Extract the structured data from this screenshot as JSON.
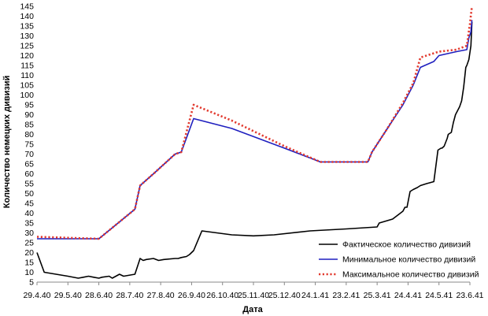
{
  "chart_data": {
    "type": "line",
    "title": "",
    "xlabel": "Дата",
    "ylabel": "Количество немецких дивизий",
    "ylim": [
      5,
      145
    ],
    "y_ticks": [
      5,
      10,
      15,
      20,
      25,
      30,
      35,
      40,
      45,
      50,
      55,
      60,
      65,
      70,
      75,
      80,
      85,
      90,
      95,
      100,
      105,
      110,
      115,
      120,
      125,
      130,
      135,
      140,
      145
    ],
    "x_tick_labels": [
      "29.4.40",
      "29.5.40",
      "28.6.40",
      "28.7.40",
      "27.8.40",
      "26.9.40",
      "26.10.40",
      "25.11.40",
      "25.12.40",
      "24.1.41",
      "23.2.41",
      "25.3.41",
      "24.4.41",
      "24.5.41",
      "23.6.41"
    ],
    "x_tick_days": [
      0,
      30,
      60,
      90,
      120,
      150,
      180,
      210,
      240,
      270,
      300,
      330,
      360,
      390,
      420
    ],
    "grid": false,
    "legend_position": "bottom-right",
    "series": [
      {
        "name": "Фактическое количество дивизий",
        "color": "#000000",
        "style": "solid",
        "x": [
          0,
          7,
          30,
          40,
          45,
          50,
          55,
          60,
          63,
          70,
          73,
          80,
          84,
          95,
          100,
          103,
          106,
          113,
          118,
          123,
          134,
          137,
          140,
          145,
          148,
          152,
          160,
          189,
          210,
          230,
          265,
          300,
          330,
          332,
          345,
          355,
          357,
          359,
          362,
          365,
          369,
          372,
          378,
          385,
          389,
          392,
          393,
          395,
          398,
          399,
          402,
          404,
          406,
          408,
          410,
          412,
          414,
          416,
          417,
          419,
          421,
          422
        ],
        "y": [
          20,
          10,
          8,
          7,
          7.5,
          8,
          7.5,
          7,
          7.5,
          8,
          7,
          9,
          8,
          9,
          17,
          16,
          16.5,
          17,
          16,
          16.5,
          17,
          17,
          17.5,
          18,
          19,
          21,
          31,
          29,
          28.5,
          29,
          31,
          32,
          33,
          35,
          37,
          41,
          43,
          43,
          51,
          52,
          53,
          54,
          55,
          56,
          72,
          73,
          73,
          74,
          78,
          80,
          81,
          86,
          90,
          92,
          94,
          97,
          104,
          114,
          115,
          118,
          125,
          137
        ]
      },
      {
        "name": "Минимальное количество дивизий",
        "color": "#1f1fbf",
        "style": "solid",
        "x": [
          0,
          60,
          95,
          100,
          113,
          134,
          140,
          152,
          189,
          240,
          275,
          321,
          325,
          340,
          355,
          365,
          372,
          385,
          390,
          407,
          417,
          419,
          421,
          422
        ],
        "y": [
          27,
          27,
          42,
          54,
          60,
          70,
          71,
          88,
          83,
          73,
          66,
          66,
          71,
          83,
          95,
          105,
          114,
          117,
          120,
          122,
          123,
          129,
          132,
          138
        ]
      },
      {
        "name": "Максимальное количество дивизий",
        "color": "#e23a2f",
        "style": "dotted",
        "x": [
          0,
          60,
          95,
          100,
          113,
          134,
          140,
          152,
          189,
          240,
          275,
          321,
          325,
          340,
          355,
          365,
          372,
          390,
          407,
          417,
          420,
          422
        ],
        "y": [
          28,
          27,
          42,
          54,
          60,
          70,
          71,
          95,
          87,
          74,
          66,
          66,
          71,
          83,
          96,
          106,
          119,
          122,
          123,
          125,
          136,
          145
        ]
      }
    ]
  }
}
